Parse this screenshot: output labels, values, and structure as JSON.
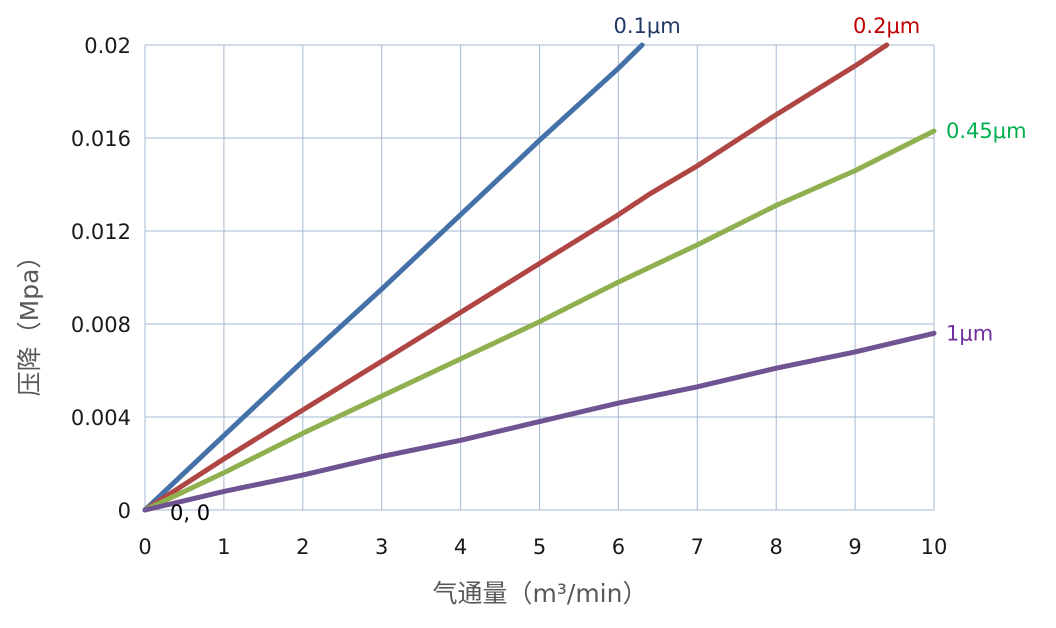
{
  "chart_data": {
    "type": "line",
    "title": "",
    "xlabel": "气通量（m³/min）",
    "ylabel": "压降（Mpa）",
    "xlim": [
      0,
      10
    ],
    "ylim": [
      0,
      0.02
    ],
    "x_ticks": [
      0,
      1,
      2,
      3,
      4,
      5,
      6,
      7,
      8,
      9,
      10
    ],
    "y_ticks": [
      0,
      0.004,
      0.008,
      0.012,
      0.016,
      0.02
    ],
    "x_tick_labels": [
      "0",
      "1",
      "2",
      "3",
      "4",
      "5",
      "6",
      "7",
      "8",
      "9",
      "10"
    ],
    "y_tick_labels": [
      "0",
      "0.004",
      "0.008",
      "0.012",
      "0.016",
      "0.02"
    ],
    "grid": true,
    "legend": "none (series labelled at line ends)",
    "annotations": [
      {
        "text": "0, 0"
      }
    ],
    "series": [
      {
        "name": "0.1μm",
        "color": "#4472a8",
        "x": [
          0,
          1,
          2,
          3,
          4,
          5,
          6,
          6.3
        ],
        "y": [
          0,
          0.0032,
          0.0064,
          0.0095,
          0.0127,
          0.0159,
          0.019,
          0.02
        ]
      },
      {
        "name": "0.2μm",
        "color": "#b04644",
        "x": [
          0,
          1,
          2,
          3,
          4,
          5,
          6,
          6.4,
          7,
          8,
          9,
          9.4
        ],
        "y": [
          0,
          0.0022,
          0.0043,
          0.0064,
          0.0085,
          0.0106,
          0.0127,
          0.0136,
          0.0148,
          0.017,
          0.0191,
          0.02
        ]
      },
      {
        "name": "0.45μm",
        "color": "#8fb04e",
        "x": [
          0,
          1,
          2,
          3,
          4,
          5,
          6,
          7,
          8,
          9,
          10
        ],
        "y": [
          0,
          0.0016,
          0.0033,
          0.0049,
          0.0065,
          0.0081,
          0.0098,
          0.0114,
          0.0131,
          0.0146,
          0.0163
        ]
      },
      {
        "name": "1μm",
        "color": "#6f5392",
        "x": [
          0,
          1,
          2,
          3,
          4,
          5,
          6,
          7,
          8,
          9,
          10
        ],
        "y": [
          0,
          0.0008,
          0.0015,
          0.0023,
          0.003,
          0.0038,
          0.0046,
          0.0053,
          0.0061,
          0.0068,
          0.0076
        ]
      }
    ],
    "label_colors": [
      "#1f3864",
      "#c00000",
      "#00b050",
      "#7030a0"
    ]
  }
}
